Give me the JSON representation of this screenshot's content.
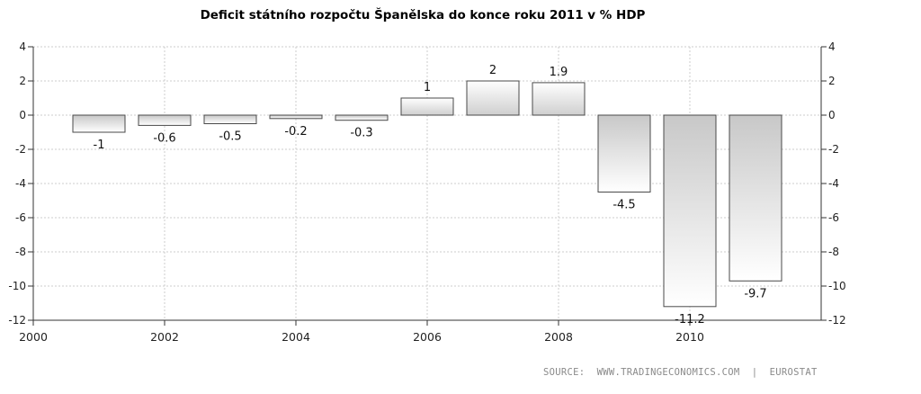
{
  "chart_data": {
    "type": "bar",
    "title": "Deficit státního rozpočtu Španělska do konce roku 2011 v % HDP",
    "categories": [
      "2001",
      "2002",
      "2003",
      "2004",
      "2005",
      "2006",
      "2007",
      "2008",
      "2009",
      "2010",
      "2011"
    ],
    "values": [
      -1,
      -0.6,
      -0.5,
      -0.2,
      -0.3,
      1,
      2,
      1.9,
      -4.5,
      -11.2,
      -9.7
    ],
    "data_labels": [
      "-1",
      "-0.6",
      "-0.5",
      "-0.2",
      "-0.3",
      "1",
      "2",
      "1.9",
      "-4.5",
      "-11.2",
      "-9.7"
    ],
    "x_ticks": [
      "2000",
      "2002",
      "2004",
      "2006",
      "2008",
      "2010"
    ],
    "x_tick_values": [
      2000,
      2002,
      2004,
      2006,
      2008,
      2010
    ],
    "y_ticks": [
      "4",
      "2",
      "0",
      "-2",
      "-4",
      "-6",
      "-8",
      "-10",
      "-12"
    ],
    "y_tick_values": [
      4,
      2,
      0,
      -2,
      -4,
      -6,
      -8,
      -10,
      -12
    ],
    "ylim": [
      -12,
      4
    ],
    "xlim": [
      2000,
      2012
    ],
    "grid": true,
    "colors": {
      "bar_top": "#ffffff",
      "bar_bottom": "#c8c8c8",
      "bar_stroke": "#4a4a4a",
      "grid": "#cccccc",
      "axis": "#333333"
    }
  },
  "source": "SOURCE:  WWW.TRADINGECONOMICS.COM  |  EUROSTAT"
}
